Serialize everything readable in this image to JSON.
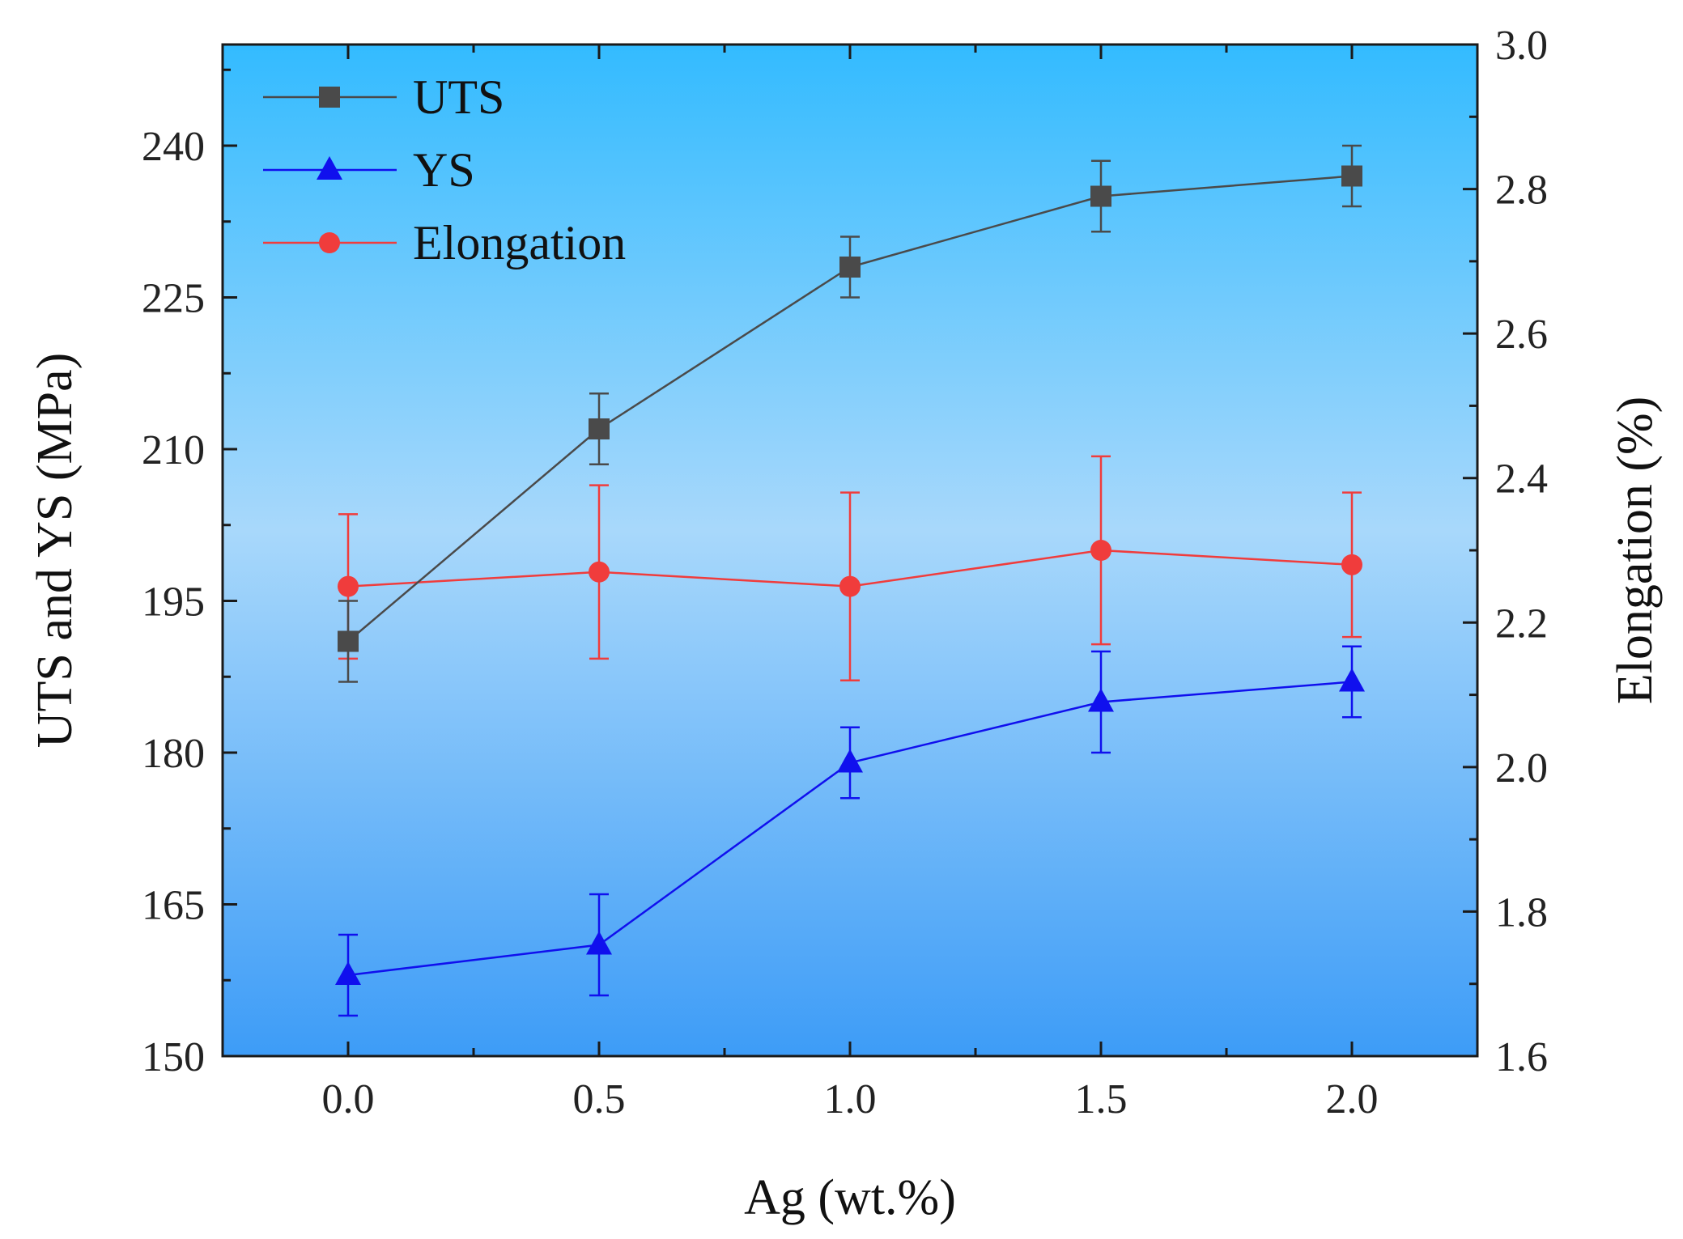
{
  "chart_data": {
    "type": "line",
    "x": [
      0.0,
      0.5,
      1.0,
      1.5,
      2.0
    ],
    "x_tick_labels": [
      "0.0",
      "0.5",
      "1.0",
      "1.5",
      "2.0"
    ],
    "xlabel": "Ag (wt.%)",
    "xlim": [
      -0.25,
      2.25
    ],
    "ylabel_left": "UTS and YS (MPa)",
    "ylim_left": [
      150,
      250
    ],
    "y_left_ticks": [
      150,
      165,
      180,
      195,
      210,
      225,
      240
    ],
    "y_left_tick_labels": [
      "150",
      "165",
      "180",
      "195",
      "210",
      "225",
      "240"
    ],
    "ylabel_right": "Elongation (%)",
    "ylim_right": [
      1.6,
      3.0
    ],
    "y_right_ticks": [
      1.6,
      1.8,
      2.0,
      2.2,
      2.4,
      2.6,
      2.8,
      3.0
    ],
    "y_right_tick_labels": [
      "1.6",
      "1.8",
      "2.0",
      "2.2",
      "2.4",
      "2.6",
      "2.8",
      "3.0"
    ],
    "grid": false,
    "legend_position": "top-left",
    "background": "blue gradient",
    "series": [
      {
        "name": "UTS",
        "axis": "left",
        "marker": "square",
        "color": "#4a4a4a",
        "values": [
          191,
          212,
          228,
          235,
          237
        ],
        "errors": [
          4,
          3.5,
          3,
          3.5,
          3
        ]
      },
      {
        "name": "YS",
        "axis": "left",
        "marker": "triangle",
        "color": "#1010ee",
        "values": [
          158,
          161,
          179,
          185,
          187
        ],
        "errors": [
          4,
          5,
          3.5,
          5,
          3.5
        ]
      },
      {
        "name": "Elongation",
        "axis": "right",
        "marker": "circle",
        "color": "#f03c3c",
        "values": [
          2.25,
          2.27,
          2.25,
          2.3,
          2.28
        ],
        "errors": [
          0.1,
          0.12,
          0.13,
          0.13,
          0.1
        ]
      }
    ]
  }
}
